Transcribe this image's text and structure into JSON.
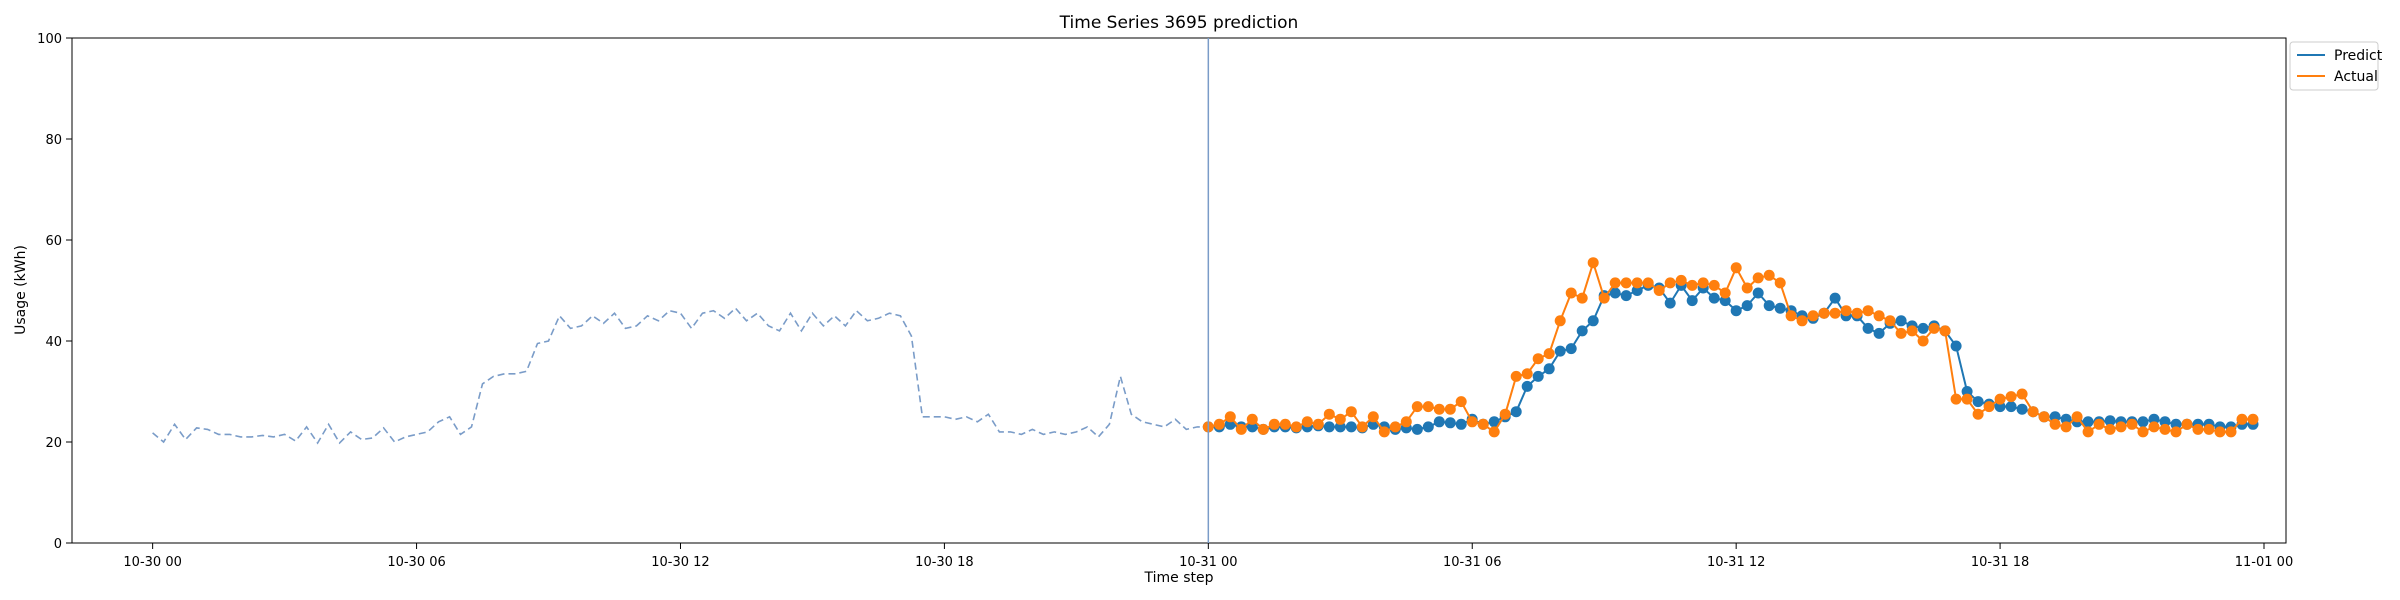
{
  "chart_data": {
    "type": "line",
    "title": "Time Series 3695 prediction",
    "xlabel": "Time step",
    "ylabel": "Usage (kWh)",
    "ylim": [
      0,
      100
    ],
    "yticks": [
      0,
      20,
      40,
      60,
      80,
      100
    ],
    "x_start": "10-29 22:10",
    "x_end": "11-01 00:30",
    "xticks": [
      {
        "time": "10-30 00:00",
        "label": "10-30 00"
      },
      {
        "time": "10-30 06:00",
        "label": "10-30 06"
      },
      {
        "time": "10-30 12:00",
        "label": "10-30 12"
      },
      {
        "time": "10-30 18:00",
        "label": "10-30 18"
      },
      {
        "time": "10-31 00:00",
        "label": "10-31 00"
      },
      {
        "time": "10-31 06:00",
        "label": "10-31 06"
      },
      {
        "time": "10-31 12:00",
        "label": "10-31 12"
      },
      {
        "time": "10-31 18:00",
        "label": "10-31 18"
      },
      {
        "time": "11-01 00:00",
        "label": "11-01 00"
      }
    ],
    "grid": false,
    "legend": {
      "placement": "outside-top-right"
    },
    "forecast_start": "10-31 00:00",
    "colors": {
      "history": "#7a9cc8",
      "predict": "#1f77b4",
      "actual": "#ff7f0e",
      "divider": "#7a9cc8"
    },
    "history": {
      "start": "10-30 00:00",
      "step_minutes": 15,
      "values": [
        21.8,
        20.0,
        23.5,
        20.5,
        22.8,
        22.5,
        21.5,
        21.5,
        21.0,
        21.0,
        21.3,
        21.0,
        21.5,
        20.2,
        23.0,
        19.8,
        23.5,
        19.8,
        22.0,
        20.5,
        20.8,
        22.8,
        20.0,
        21.0,
        21.5,
        22.0,
        24.0,
        25.0,
        21.5,
        23.0,
        31.5,
        33.0,
        33.5,
        33.5,
        34.0,
        39.5,
        40.0,
        45.0,
        42.5,
        43.0,
        45.0,
        43.5,
        45.5,
        42.5,
        43.0,
        45.0,
        44.0,
        46.0,
        45.5,
        42.5,
        45.5,
        46.0,
        44.5,
        46.5,
        44.0,
        45.5,
        43.0,
        42.0,
        45.5,
        42.0,
        45.5,
        43.0,
        45.0,
        43.0,
        46.0,
        44.0,
        44.5,
        45.5,
        45.0,
        41.0,
        25.0,
        25.0,
        25.0,
        24.5,
        25.0,
        24.0,
        25.5,
        22.0,
        22.0,
        21.5,
        22.5,
        21.5,
        22.0,
        21.5,
        22.0,
        23.0,
        21.0,
        23.5,
        33.0,
        25.5,
        24.0,
        23.5,
        23.0,
        24.5,
        22.5,
        23.0,
        23.0,
        23.5
      ]
    },
    "series": [
      {
        "name": "Predict",
        "start": "10-31 00:00",
        "step_minutes": 15,
        "values": [
          23.0,
          23.0,
          23.5,
          23.0,
          23.0,
          22.5,
          23.0,
          23.0,
          22.8,
          23.0,
          23.2,
          23.0,
          23.0,
          23.0,
          22.8,
          23.5,
          23.0,
          22.5,
          22.8,
          22.5,
          23.0,
          24.0,
          23.8,
          23.5,
          24.5,
          23.5,
          24.0,
          25.0,
          26.0,
          31.0,
          33.0,
          34.5,
          38.0,
          38.5,
          42.0,
          44.0,
          49.0,
          49.5,
          49.0,
          50.0,
          51.0,
          50.5,
          47.5,
          51.0,
          48.0,
          50.5,
          48.5,
          48.0,
          46.0,
          47.0,
          49.5,
          47.0,
          46.5,
          46.0,
          45.0,
          44.5,
          45.5,
          48.5,
          45.0,
          45.0,
          42.5,
          41.5,
          43.5,
          44.0,
          43.0,
          42.5,
          43.0,
          42.0,
          39.0,
          30.0,
          28.0,
          27.5,
          27.0,
          27.0,
          26.5,
          26.0,
          25.0,
          25.0,
          24.5,
          24.0,
          24.0,
          24.0,
          24.2,
          24.0,
          24.0,
          24.0,
          24.5,
          24.0,
          23.5,
          23.5,
          23.5,
          23.5,
          23.0,
          23.0,
          23.5,
          23.5
        ]
      },
      {
        "name": "Actual",
        "start": "10-31 00:00",
        "step_minutes": 15,
        "values": [
          23.0,
          23.5,
          25.0,
          22.5,
          24.5,
          22.5,
          23.5,
          23.5,
          23.0,
          24.0,
          23.5,
          25.5,
          24.5,
          26.0,
          23.0,
          25.0,
          22.0,
          23.0,
          24.0,
          27.0,
          27.0,
          26.5,
          26.5,
          28.0,
          24.0,
          23.5,
          22.0,
          25.5,
          33.0,
          33.5,
          36.5,
          37.5,
          44.0,
          49.5,
          48.5,
          55.5,
          48.5,
          51.5,
          51.5,
          51.5,
          51.5,
          50.0,
          51.5,
          52.0,
          51.0,
          51.5,
          51.0,
          49.5,
          54.5,
          50.5,
          52.5,
          53.0,
          51.5,
          45.0,
          44.0,
          45.0,
          45.5,
          45.5,
          46.0,
          45.5,
          46.0,
          45.0,
          44.0,
          41.5,
          42.0,
          40.0,
          42.5,
          42.0,
          28.5,
          28.5,
          25.5,
          27.0,
          28.5,
          29.0,
          29.5,
          26.0,
          25.0,
          23.5,
          23.0,
          25.0,
          22.0,
          23.5,
          22.5,
          23.0,
          23.5,
          22.0,
          23.0,
          22.5,
          22.0,
          23.5,
          22.5,
          22.5,
          22.0,
          22.0,
          24.5,
          24.5
        ]
      }
    ]
  }
}
